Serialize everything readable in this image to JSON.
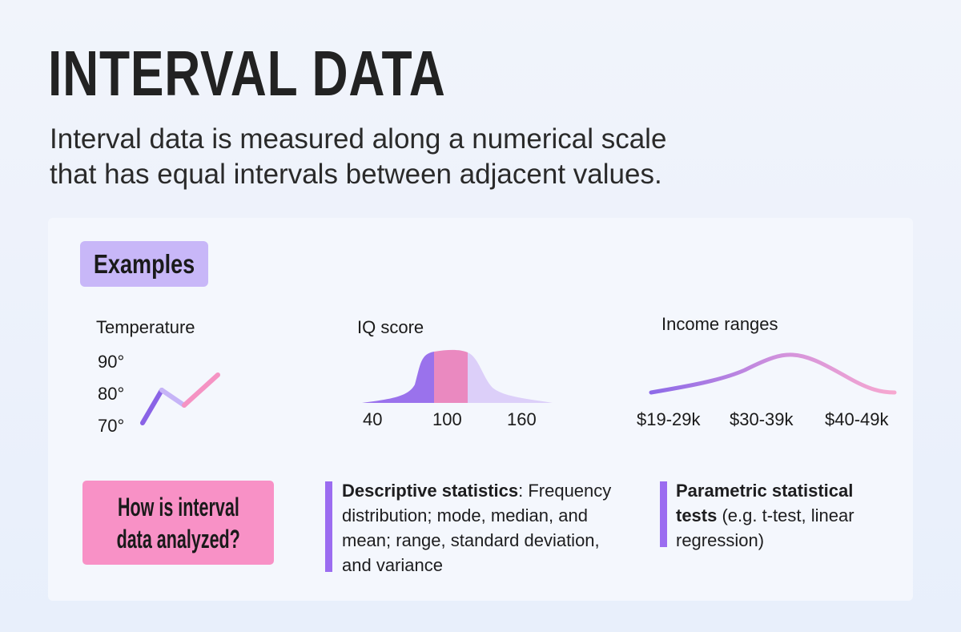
{
  "title": "INTERVAL DATA",
  "subtitle_lines": [
    "Interval data is measured along a numerical scale",
    "that has equal intervals between adjacent values."
  ],
  "examples_label": "Examples",
  "colors": {
    "purple": "#8f64ea",
    "lavender": "#c9b6f8",
    "pink": "#f38fc0",
    "badge": "#c8b7f8",
    "pink_box": "#f891c6",
    "bar": "#9b6cf0"
  },
  "temperature": {
    "label": "Temperature",
    "ticks": [
      "90°",
      "80°",
      "70°"
    ]
  },
  "iq": {
    "label": "IQ score",
    "ticks": [
      "40",
      "100",
      "160"
    ]
  },
  "income": {
    "label": "Income ranges",
    "ticks": [
      "$19-29k",
      "$30-39k",
      "$40-49k"
    ]
  },
  "analysis": {
    "question_lines": [
      "How is interval",
      "data analyzed?"
    ],
    "descriptive": {
      "bold": "Descriptive statistics",
      "rest": ": Frequency distribution; mode, median, and mean; range, standard deviation, and variance"
    },
    "parametric": {
      "bold": "Parametric statistical tests",
      "rest": " (e.g. t-test, linear regression)"
    }
  }
}
